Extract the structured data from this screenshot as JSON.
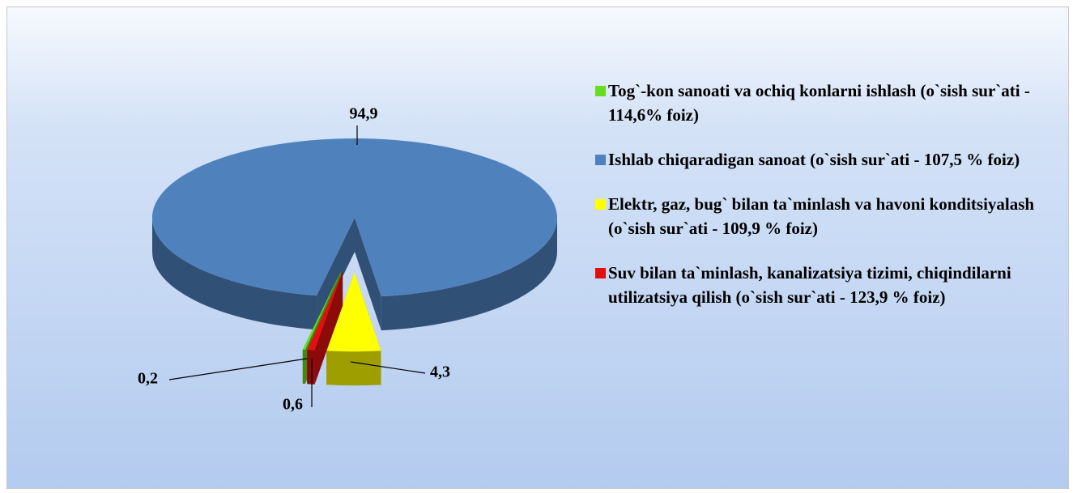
{
  "chart_data": {
    "type": "pie",
    "categories": [
      "Tog`-kon sanoati va ochiq konlarni ishlash (o`sish sur`ati - 114,6% foiz)",
      "Ishlab chiqaradigan sanoat (o`sish sur`ati - 107,5 % foiz)",
      "Elektr, gaz, bug` bilan ta`minlash va havoni konditsiyalash (o`sish sur`ati - 109,9 % foiz)",
      "Suv bilan ta`minlash, kanalizatsiya tizimi, chiqindilarni utilizatsiya qilish (o`sish sur`ati - 123,9 % foiz)"
    ],
    "values": [
      0.2,
      94.9,
      4.3,
      0.6
    ],
    "value_labels": [
      "0,2",
      "94,9",
      "4,3",
      "0,6"
    ],
    "colors": [
      "#66dd22",
      "#4f81bd",
      "#ffff00",
      "#e01010"
    ],
    "legend": "right"
  }
}
